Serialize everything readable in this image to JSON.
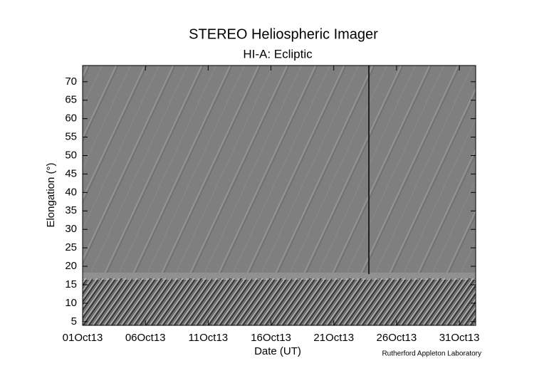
{
  "chart_data": {
    "type": "image",
    "title": "STEREO Heliospheric Imager",
    "subtitle": "HI-A: Ecliptic",
    "xlabel": "Date (UT)",
    "ylabel": "Elongation (°)",
    "credit": "Rutherford Appleton Laboratory",
    "xlim": [
      1,
      32.3
    ],
    "xticks": [
      {
        "value": 1,
        "label": "01Oct13"
      },
      {
        "value": 6,
        "label": "06Oct13"
      },
      {
        "value": 11,
        "label": "11Oct13"
      },
      {
        "value": 16,
        "label": "16Oct13"
      },
      {
        "value": 21,
        "label": "21Oct13"
      },
      {
        "value": 26,
        "label": "26Oct13"
      },
      {
        "value": 31,
        "label": "31Oct13"
      }
    ],
    "ylim": [
      4,
      74.4
    ],
    "yticks": [
      5,
      10,
      15,
      20,
      25,
      30,
      35,
      40,
      45,
      50,
      55,
      60,
      65,
      70
    ]
  }
}
